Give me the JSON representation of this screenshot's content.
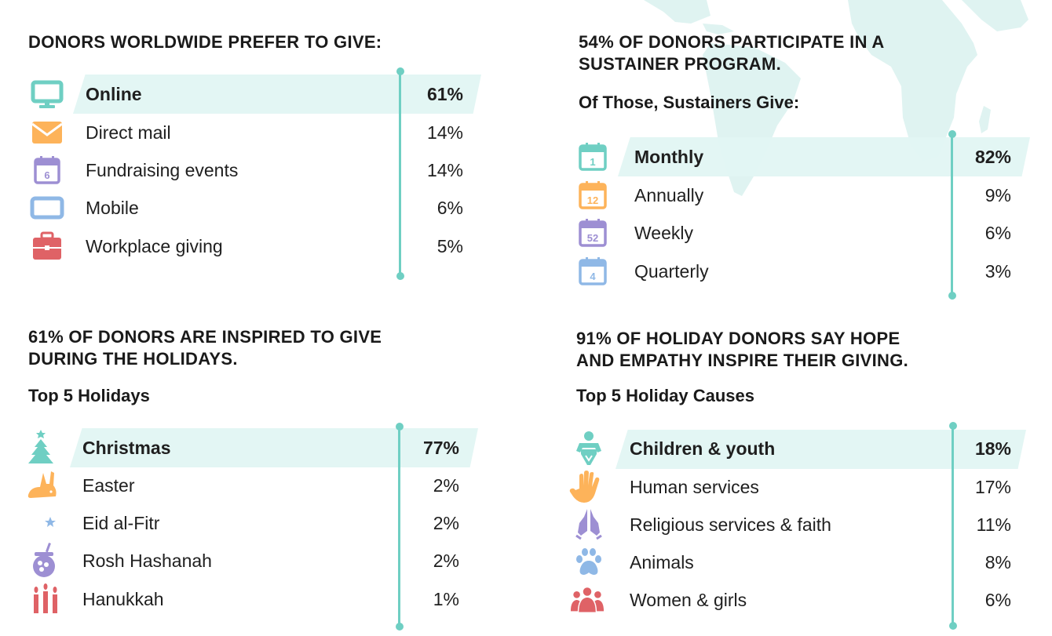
{
  "colors": {
    "teal": "#6fcfc3",
    "orange": "#fdb35a",
    "purple": "#9d8fd3",
    "blue": "#8fb8e6",
    "red": "#df6266",
    "band": "#e2f5f3",
    "map": "#dff3f1"
  },
  "preferred_channels": {
    "heading": "DONORS WORLDWIDE PREFER TO GIVE:",
    "items": [
      {
        "icon": "desktop-monitor-icon",
        "label": "Online",
        "value": "61%"
      },
      {
        "icon": "envelope-icon",
        "label": "Direct mail",
        "value": "14%"
      },
      {
        "icon": "calendar-6-icon",
        "label": "Fundraising events",
        "value": "14%"
      },
      {
        "icon": "tablet-icon",
        "label": "Mobile",
        "value": "6%"
      },
      {
        "icon": "briefcase-icon",
        "label": "Workplace giving",
        "value": "5%"
      }
    ]
  },
  "sustainers": {
    "heading_line1": "54% OF DONORS PARTICIPATE IN A",
    "heading_line2": "SUSTAINER PROGRAM.",
    "subheading": "Of Those, Sustainers Give:",
    "items": [
      {
        "icon": "calendar-icon",
        "icon_text": "1",
        "label": "Monthly",
        "value": "82%"
      },
      {
        "icon": "calendar-icon",
        "icon_text": "12",
        "label": "Annually",
        "value": "9%"
      },
      {
        "icon": "calendar-icon",
        "icon_text": "52",
        "label": "Weekly",
        "value": "6%"
      },
      {
        "icon": "calendar-icon",
        "icon_text": "4",
        "label": "Quarterly",
        "value": "3%"
      }
    ]
  },
  "holidays": {
    "heading_line1": "61% OF DONORS ARE INSPIRED TO GIVE",
    "heading_line2": "DURING THE HOLIDAYS.",
    "subheading": "Top 5 Holidays",
    "items": [
      {
        "icon": "christmas-tree-icon",
        "label": "Christmas",
        "value": "77%"
      },
      {
        "icon": "rabbit-icon",
        "label": "Easter",
        "value": "2%"
      },
      {
        "icon": "crescent-star-icon",
        "label": "Eid al-Fitr",
        "value": "2%"
      },
      {
        "icon": "honey-pot-icon",
        "label": "Rosh Hashanah",
        "value": "2%"
      },
      {
        "icon": "candles-icon",
        "label": "Hanukkah",
        "value": "1%"
      }
    ]
  },
  "causes": {
    "heading_line1": "91% OF HOLIDAY DONORS SAY HOPE",
    "heading_line2": "AND EMPATHY INSPIRE THEIR GIVING.",
    "subheading": "Top 5 Holiday Causes",
    "items": [
      {
        "icon": "baby-icon",
        "label": "Children & youth",
        "value": "18%"
      },
      {
        "icon": "hand-icon",
        "label": "Human services",
        "value": "17%"
      },
      {
        "icon": "praying-hands-icon",
        "label": "Religious services & faith",
        "value": "11%"
      },
      {
        "icon": "paw-icon",
        "label": "Animals",
        "value": "8%"
      },
      {
        "icon": "group-icon",
        "label": "Women & girls",
        "value": "6%"
      }
    ]
  }
}
